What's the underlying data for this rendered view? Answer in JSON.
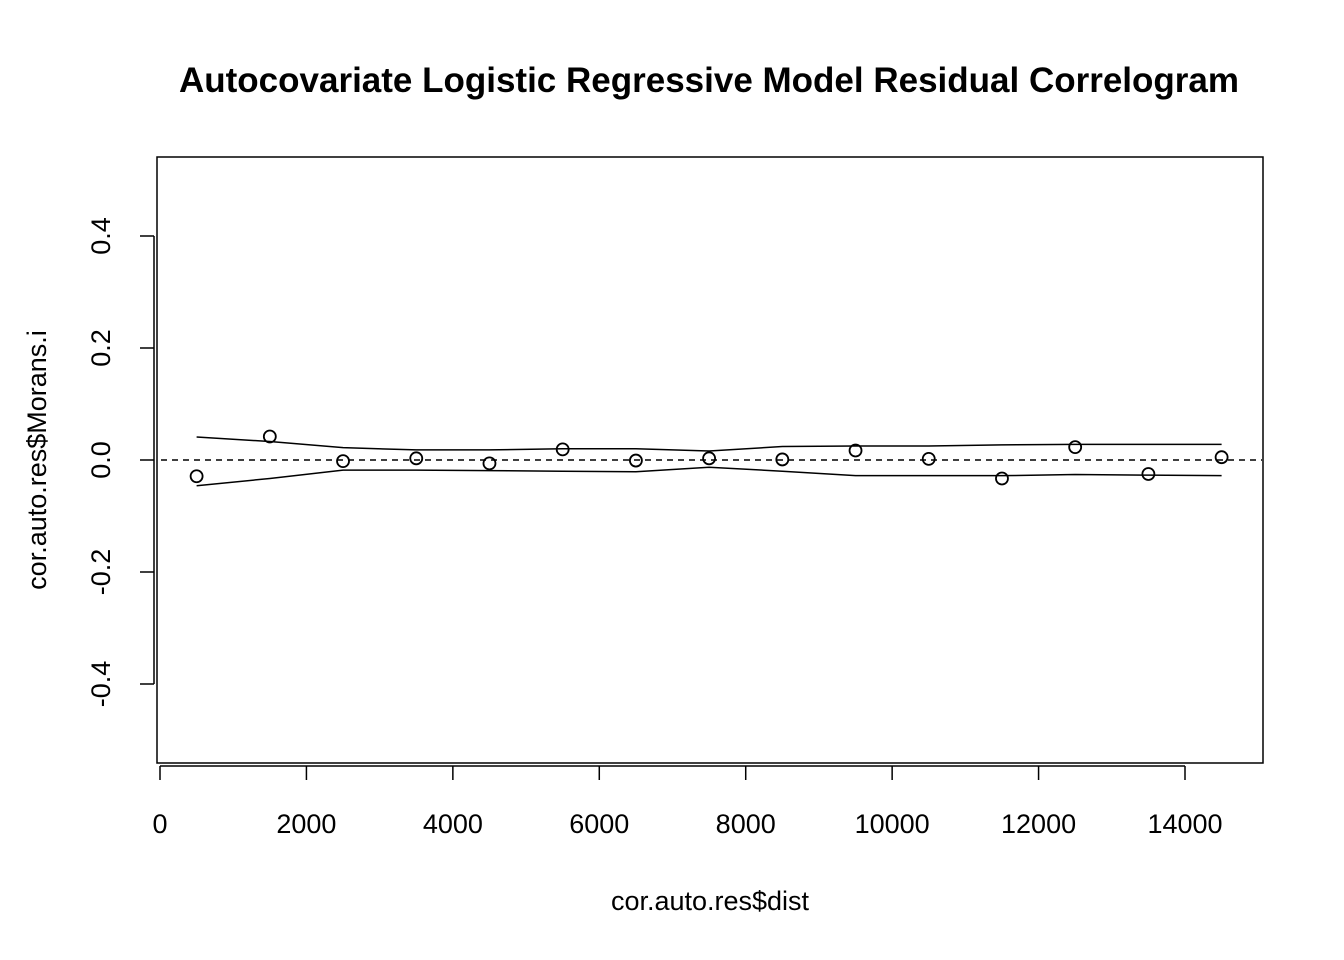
{
  "chart_data": {
    "type": "scatter",
    "title": "Autocovariate Logistic Regressive Model Residual Correlogram",
    "xlabel": "cor.auto.res$dist",
    "ylabel": "cor.auto.res$Morans.i",
    "xlim": [
      0,
      15000
    ],
    "ylim": [
      -0.54,
      0.54
    ],
    "xticks": [
      0,
      2000,
      4000,
      6000,
      8000,
      10000,
      12000,
      14000
    ],
    "xtick_labels": [
      "0",
      "2000",
      "4000",
      "6000",
      "8000",
      "10000",
      "12000",
      "14000"
    ],
    "yticks": [
      -0.4,
      -0.2,
      0.0,
      0.2,
      0.4
    ],
    "ytick_labels": [
      "-0.4",
      "-0.2",
      "0.0",
      "0.2",
      "0.4"
    ],
    "reference_line": 0.0,
    "grid": false,
    "x": [
      500,
      1500,
      2500,
      3500,
      4500,
      5500,
      6500,
      7500,
      8500,
      9500,
      10500,
      11500,
      12500,
      13500,
      14500
    ],
    "y": [
      -0.029,
      0.042,
      -0.002,
      0.003,
      -0.006,
      0.019,
      -0.001,
      0.003,
      0.001,
      0.017,
      0.002,
      -0.033,
      0.023,
      -0.025,
      0.005
    ],
    "upper": [
      0.041,
      0.033,
      0.022,
      0.018,
      0.018,
      0.02,
      0.02,
      0.016,
      0.024,
      0.025,
      0.025,
      0.027,
      0.028,
      0.028,
      0.028
    ],
    "lower": [
      -0.046,
      -0.033,
      -0.018,
      -0.018,
      -0.019,
      -0.02,
      -0.021,
      -0.013,
      -0.02,
      -0.028,
      -0.028,
      -0.028,
      -0.026,
      -0.027,
      -0.028
    ]
  }
}
